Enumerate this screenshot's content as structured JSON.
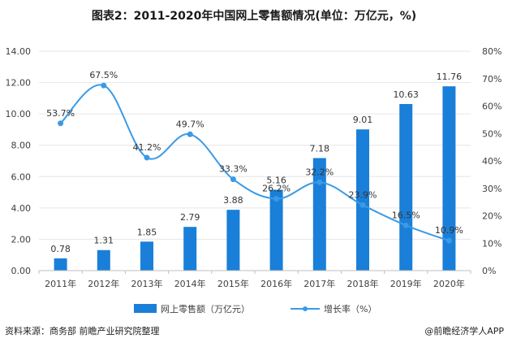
{
  "footer": {
    "source": "资料来源：商务部 前瞻产业研究院整理",
    "brand": "@前瞻经济学人APP"
  },
  "chart_data": {
    "type": "bar+line",
    "title": "图表2：2011-2020年中国网上零售额情况(单位：万亿元，%)",
    "categories": [
      "2011年",
      "2012年",
      "2013年",
      "2014年",
      "2015年",
      "2016年",
      "2017年",
      "2018年",
      "2019年",
      "2020年"
    ],
    "y_left": {
      "ticks": [
        "0.00",
        "2.00",
        "4.00",
        "6.00",
        "8.00",
        "10.00",
        "12.00",
        "14.00"
      ],
      "range": [
        0,
        14
      ]
    },
    "y_right": {
      "ticks": [
        "0%",
        "10%",
        "20%",
        "30%",
        "40%",
        "50%",
        "60%",
        "70%",
        "80%"
      ],
      "range": [
        0,
        80
      ]
    },
    "series": [
      {
        "name": "网上零售额（万亿元）",
        "kind": "bar",
        "axis": "left",
        "color": "#1a7fd8",
        "values": [
          0.78,
          1.31,
          1.85,
          2.79,
          3.88,
          5.16,
          7.18,
          9.01,
          10.63,
          11.76
        ],
        "labels": [
          "0.78",
          "1.31",
          "1.85",
          "2.79",
          "3.88",
          "5.16",
          "7.18",
          "9.01",
          "10.63",
          "11.76"
        ]
      },
      {
        "name": "增长率（%）",
        "kind": "line",
        "axis": "right",
        "color": "#3a9ae6",
        "values": [
          53.7,
          67.5,
          41.2,
          49.7,
          33.3,
          26.2,
          32.2,
          23.9,
          16.5,
          10.9
        ],
        "labels": [
          "53.7%",
          "67.5%",
          "41.2%",
          "49.7%",
          "33.3%",
          "26.2%",
          "32.2%",
          "23.9%",
          "16.5%",
          "10.9%"
        ]
      }
    ],
    "legend": "bottom"
  }
}
